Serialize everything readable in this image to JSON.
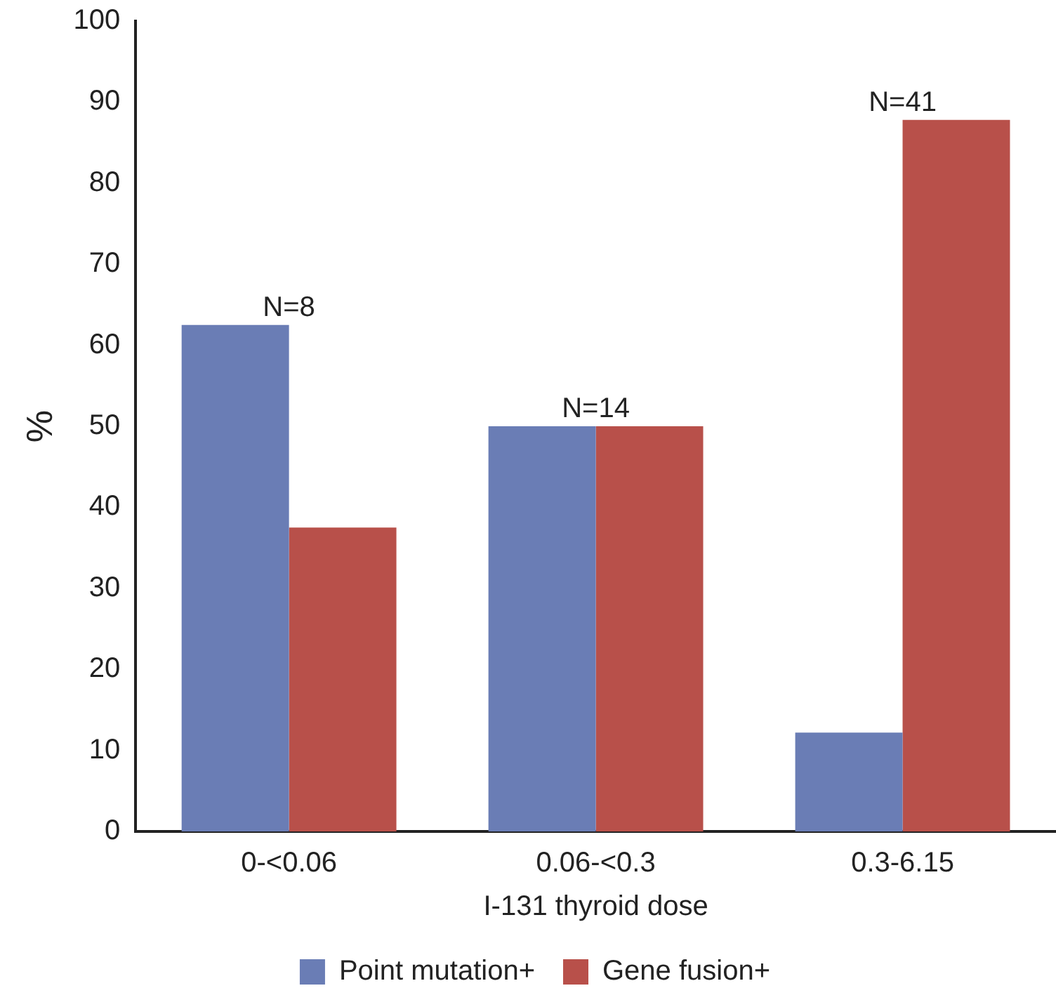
{
  "chart_data": {
    "type": "bar",
    "xlabel": "I-131 thyroid dose",
    "ylabel": "%",
    "categories": [
      "0-<0.06",
      "0.06-<0.3",
      "0.3-6.15"
    ],
    "series": [
      {
        "name": "Point mutation+",
        "color": "#6a7db5",
        "values": [
          62.5,
          50,
          12.2
        ]
      },
      {
        "name": "Gene fusion+",
        "color": "#b8504a",
        "values": [
          37.5,
          50,
          87.8
        ]
      }
    ],
    "ylim": [
      0,
      100
    ],
    "yticks": [
      0,
      10,
      20,
      30,
      40,
      50,
      60,
      70,
      80,
      90,
      100
    ],
    "grid": false,
    "legend": "bottom",
    "annotations": [
      {
        "text": "N=8",
        "x": "0-<0.06",
        "y": 62.5
      },
      {
        "text": "N=14",
        "x": "0.06-<0.3",
        "y": 50
      },
      {
        "text": "N=41",
        "x": "0.3-6.15",
        "y": 87.8
      }
    ]
  }
}
